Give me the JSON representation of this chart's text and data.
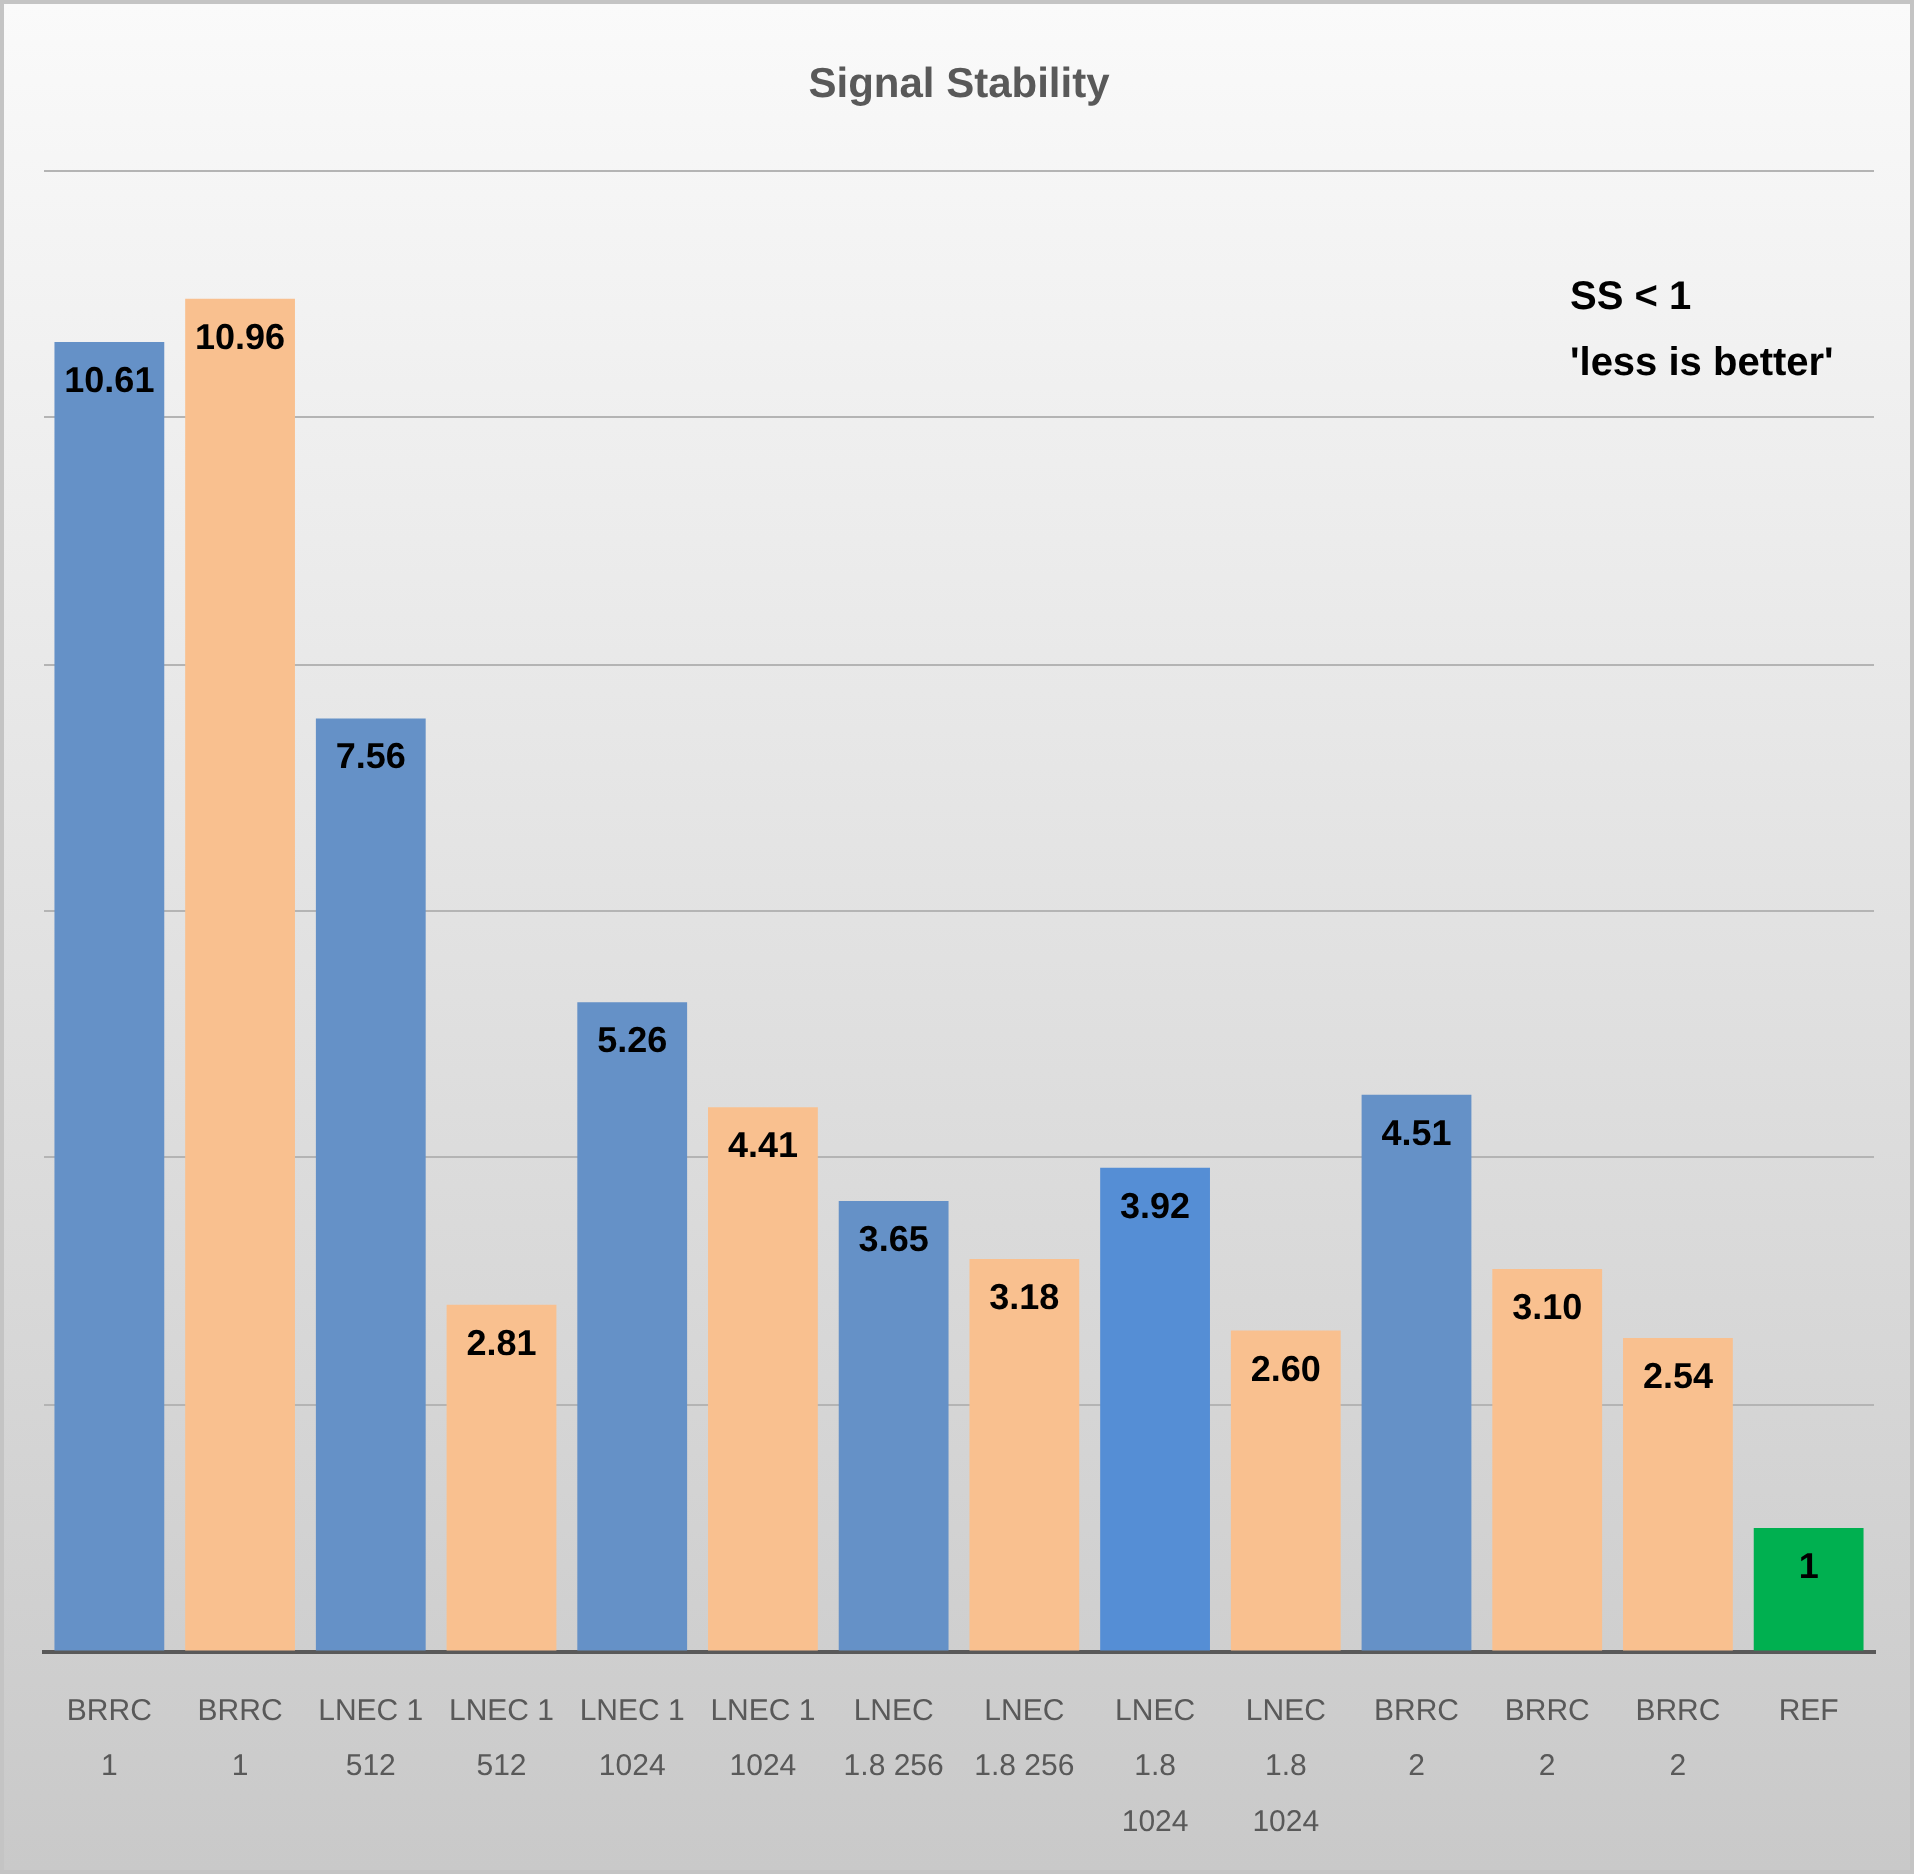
{
  "chart_data": {
    "type": "bar",
    "title": "Signal Stability",
    "categories": [
      "BRRC 1",
      "BRRC 1",
      "LNEC 1 512",
      "LNEC 1 512",
      "LNEC 1 1024",
      "LNEC 1 1024",
      "LNEC 1.8 256",
      "LNEC 1.8 256",
      "LNEC 1.8 1024",
      "LNEC 1.8 1024",
      "BRRC 2",
      "BRRC 2",
      "BRRC 2",
      "REF"
    ],
    "values": [
      10.61,
      10.96,
      7.56,
      2.81,
      5.26,
      4.41,
      3.65,
      3.18,
      3.92,
      2.6,
      4.51,
      3.1,
      2.54,
      1
    ],
    "colors": [
      "#6591c7",
      "#f9c08f",
      "#6591c7",
      "#f9c08f",
      "#6591c7",
      "#f9c08f",
      "#6591c7",
      "#f9c08f",
      "#558ed5",
      "#f9c08f",
      "#6591c7",
      "#f9c08f",
      "#f9c08f",
      "#00b050"
    ],
    "value_labels": [
      "10.61",
      "10.96",
      "7.56",
      "2.81",
      "5.26",
      "4.41",
      "3.65",
      "3.18",
      "3.92",
      "2.60",
      "4.51",
      "3.10",
      "2.54",
      "1"
    ],
    "ylim": [
      0,
      12
    ],
    "yticks": [
      {
        "value": 0,
        "label": null
      },
      {
        "value": 2,
        "label": null
      },
      {
        "value": 4,
        "label": null
      },
      {
        "value": 6,
        "label": null
      },
      {
        "value": 8,
        "label": null
      },
      {
        "value": 10,
        "label": null
      },
      {
        "value": 12,
        "label": null
      }
    ],
    "tick_labels": "x",
    "grid": "y",
    "annotations": [
      "SS < 1",
      "'less is better'"
    ]
  }
}
